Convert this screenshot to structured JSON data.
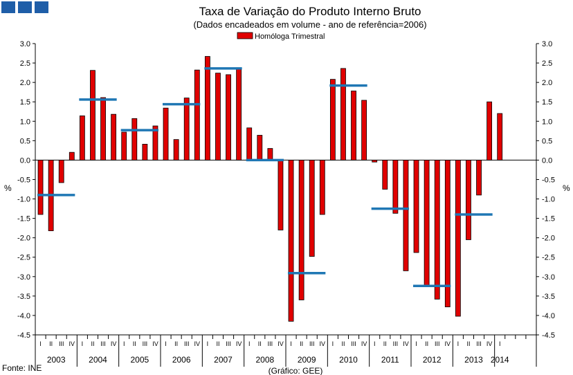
{
  "header": {
    "title": "Taxa de Variação do Produto Interno Bruto",
    "subtitle": "(Dados encadeados em volume - ano de referência=2006)"
  },
  "footer": {
    "source": "Fonte: INE",
    "credit": "(Gráfico: GEE)"
  },
  "colors": {
    "bar_fill": "#e00000",
    "bar_stroke": "#000000",
    "annual_line": "#1f77b4",
    "logo": "#1f5ea8"
  },
  "chart_data": {
    "type": "bar",
    "legend": {
      "labels": [
        "Homóloga Trimestral"
      ],
      "placement": "top-center"
    },
    "ylabel": "%",
    "y2label": "%",
    "ylim": [
      -4.5,
      3.0
    ],
    "yticks": [
      3.0,
      2.5,
      2.0,
      1.5,
      1.0,
      0.5,
      0.0,
      -0.5,
      -1.0,
      -1.5,
      -2.0,
      -2.5,
      -3.0,
      -3.5,
      -4.0,
      -4.5
    ],
    "ytick_labels": [
      "3.0",
      "2.5",
      "2.0",
      "1.5",
      "1.0",
      "0.5",
      "0.0",
      "-0.5",
      "-1.0",
      "-1.5",
      "-2.0",
      "-2.5",
      "-3.0",
      "-3.5",
      "-4.0",
      "-4.5"
    ],
    "quarter_labels": [
      "I",
      "II",
      "III",
      "IV"
    ],
    "years": [
      "2003",
      "2004",
      "2005",
      "2006",
      "2007",
      "2008",
      "2009",
      "2010",
      "2011",
      "2012",
      "2013",
      "2014"
    ],
    "series": [
      {
        "name": "Homóloga Trimestral",
        "values": [
          -1.4,
          -1.82,
          -0.58,
          0.2,
          1.14,
          2.31,
          1.61,
          1.18,
          0.72,
          1.07,
          0.41,
          0.88,
          1.34,
          0.53,
          1.6,
          2.32,
          2.67,
          2.24,
          2.2,
          2.35,
          0.83,
          0.64,
          0.3,
          -1.8,
          -4.15,
          -3.6,
          -2.48,
          -1.4,
          2.08,
          2.36,
          1.78,
          1.54,
          -0.05,
          -0.75,
          -1.37,
          -2.85,
          -2.38,
          -3.22,
          -3.58,
          -3.78,
          -4.02,
          -2.05,
          -0.9,
          1.5,
          1.2
        ]
      },
      {
        "name": "",
        "annual_values": [
          -0.9,
          1.56,
          0.77,
          1.44,
          2.36,
          0.0,
          -2.91,
          1.92,
          -1.25,
          -3.24,
          -1.4
        ]
      }
    ]
  }
}
